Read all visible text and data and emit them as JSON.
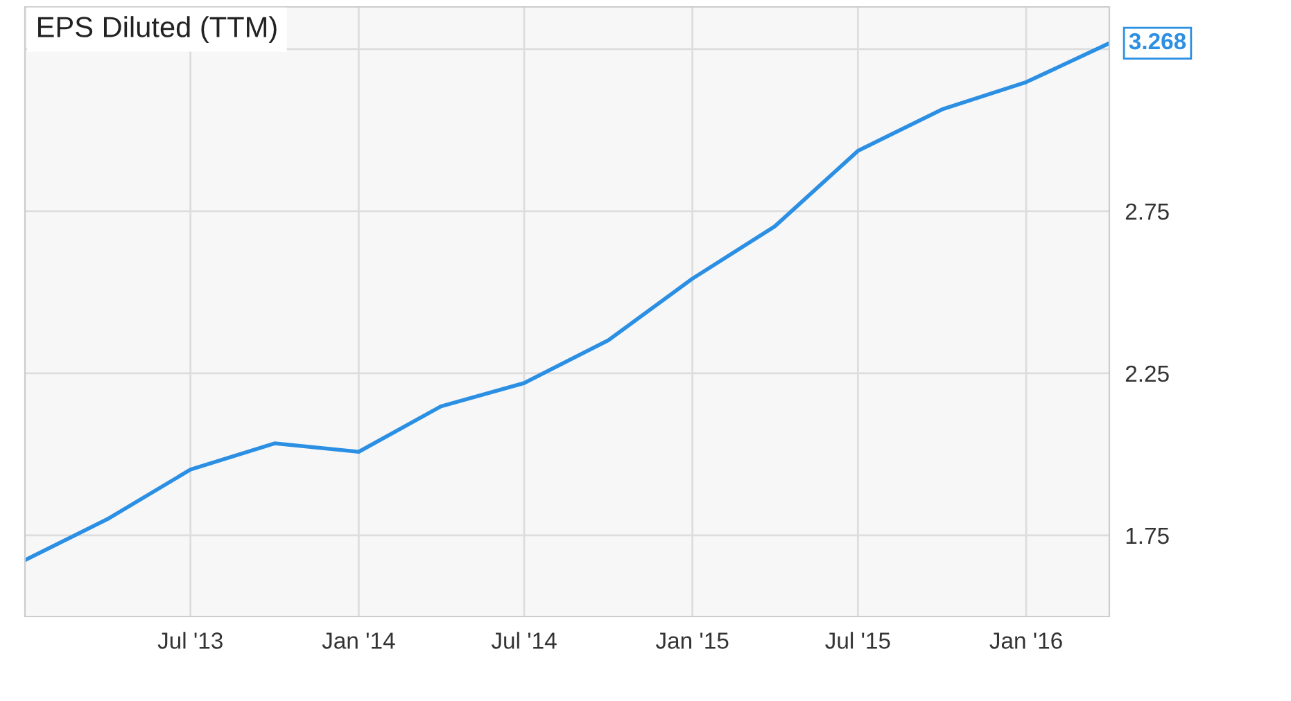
{
  "chart_data": {
    "type": "line",
    "title": "EPS Diluted (TTM)",
    "x": [
      "2013-01-01",
      "2013-04-01",
      "2013-07-01",
      "2013-10-01",
      "2014-01-01",
      "2014-04-01",
      "2014-07-01",
      "2014-10-01",
      "2015-01-01",
      "2015-04-01",
      "2015-07-01",
      "2015-10-01",
      "2016-01-01",
      "2016-04-01"
    ],
    "series": [
      {
        "color": "#2b8fe3",
        "values": [
          1.674,
          1.8,
          1.953,
          2.034,
          2.008,
          2.148,
          2.22,
          2.352,
          2.542,
          2.703,
          2.936,
          3.064,
          3.148,
          3.268
        ]
      }
    ],
    "annotations": [
      {
        "text": "3.268",
        "x": "2016-04-01",
        "y": 3.268
      }
    ],
    "xlim": [
      "2013-01-01",
      "2016-04-01"
    ],
    "xticks": [
      {
        "value": "2013-07-01",
        "label": "Jul '13"
      },
      {
        "value": "2014-01-01",
        "label": "Jan '14"
      },
      {
        "value": "2014-07-01",
        "label": "Jul '14"
      },
      {
        "value": "2015-01-01",
        "label": "Jan '15"
      },
      {
        "value": "2015-07-01",
        "label": "Jul '15"
      },
      {
        "value": "2016-01-01",
        "label": "Jan '16"
      }
    ],
    "ylim": [
      1.5,
      3.38
    ],
    "yticks": [
      1.75,
      2.25,
      2.75,
      {
        "value": 3.25,
        "label": null
      }
    ],
    "grid": true,
    "legend": false,
    "marker": "none",
    "line_style": "solid"
  }
}
